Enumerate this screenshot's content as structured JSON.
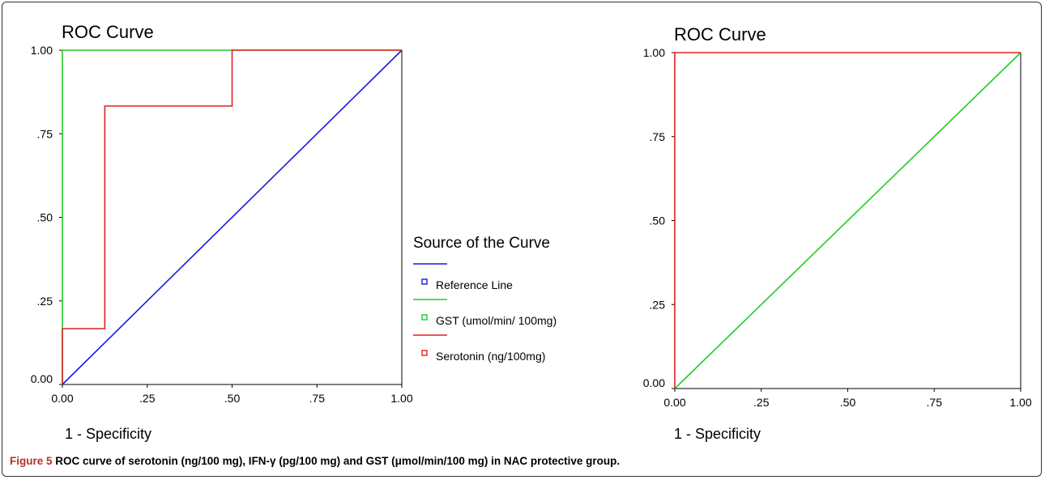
{
  "chart_data": [
    {
      "type": "line",
      "title": "ROC Curve",
      "xlabel": "1 - Specificity",
      "ylabel": "",
      "xlim": [
        0,
        1
      ],
      "ylim": [
        0,
        1
      ],
      "x_ticks": [
        "0.00",
        ".25",
        ".50",
        ".75",
        "1.00"
      ],
      "y_ticks": [
        "0.00",
        ".25",
        ".50",
        ".75",
        "1.00"
      ],
      "grid": false,
      "legend": {
        "title": "Source of the Curve",
        "placement": "right",
        "entries": [
          "Reference Line",
          "GST (umol/min/ 100mg)",
          "Serotonin (ng/100mg)"
        ]
      },
      "series": [
        {
          "name": "Reference Line",
          "color": "#1a1adc",
          "points": [
            [
              0,
              0
            ],
            [
              1,
              1
            ]
          ]
        },
        {
          "name": "GST (umol/min/ 100mg)",
          "color": "#22cc22",
          "points": [
            [
              0,
              0
            ],
            [
              0,
              1
            ],
            [
              1,
              1
            ]
          ]
        },
        {
          "name": "Serotonin (ng/100mg)",
          "color": "#e02020",
          "points": [
            [
              0,
              0
            ],
            [
              0,
              0.167
            ],
            [
              0.125,
              0.167
            ],
            [
              0.125,
              0.833
            ],
            [
              0.5,
              0.833
            ],
            [
              0.5,
              1
            ],
            [
              1,
              1
            ]
          ]
        }
      ]
    },
    {
      "type": "line",
      "title": "ROC Curve",
      "xlabel": "1 - Specificity",
      "ylabel": "",
      "xlim": [
        0,
        1
      ],
      "ylim": [
        0,
        1
      ],
      "x_ticks": [
        "0.00",
        ".25",
        ".50",
        ".75",
        "1.00"
      ],
      "y_ticks": [
        "0.00",
        ".25",
        ".50",
        ".75",
        "1.00"
      ],
      "grid": false,
      "series": [
        {
          "color": "#22cc22",
          "points": [
            [
              0,
              0
            ],
            [
              1,
              1
            ]
          ]
        },
        {
          "color": "#e02020",
          "points": [
            [
              0,
              0
            ],
            [
              0,
              1
            ],
            [
              1,
              1
            ]
          ]
        }
      ]
    }
  ],
  "caption": {
    "label": "Figure 5",
    "text": "ROC curve of serotonin (ng/100 mg), IFN-γ (pg/100 mg) and GST (μmol/min/100 mg) in NAC protective group."
  }
}
